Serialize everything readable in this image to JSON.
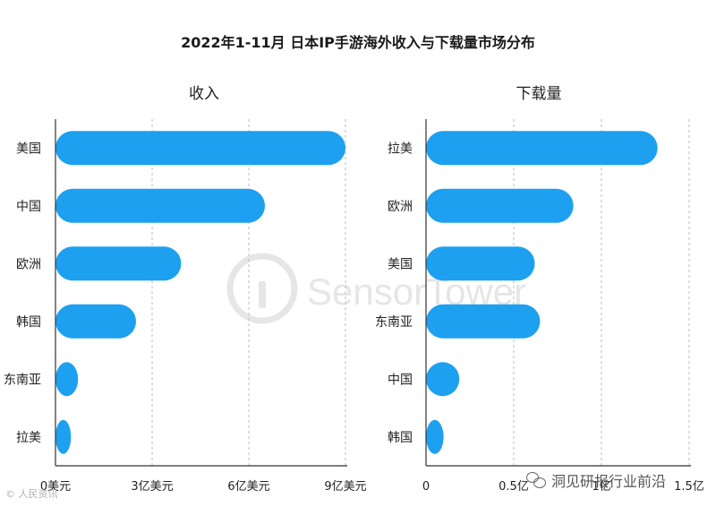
{
  "title": "2022年1-11月 日本IP手游海外收入与下载量市场分布",
  "colors": {
    "bar": "#1ea0f0",
    "grid": "#bdbdbd",
    "axis": "#333333",
    "watermark": "#e2e2e2"
  },
  "watermark": "SensorTower",
  "footer_left": "© 人民资讯",
  "footer_right": "洞见研报行业前沿",
  "chart_data": [
    {
      "type": "bar",
      "orientation": "horizontal",
      "title": "收入",
      "categories": [
        "美国",
        "中国",
        "欧洲",
        "韩国",
        "东南亚",
        "拉美"
      ],
      "values": [
        9.0,
        6.5,
        3.9,
        2.5,
        0.7,
        0.48
      ],
      "xlim": [
        0,
        9
      ],
      "ticks": [
        0,
        3,
        6,
        9
      ],
      "tick_labels": [
        "0美元",
        "3亿美元",
        "6亿美元",
        "9亿美元"
      ],
      "grid": true
    },
    {
      "type": "bar",
      "orientation": "horizontal",
      "title": "下载量",
      "categories": [
        "拉美",
        "欧洲",
        "美国",
        "东南亚",
        "中国",
        "韩国"
      ],
      "values": [
        1.32,
        0.84,
        0.62,
        0.65,
        0.19,
        0.1
      ],
      "xlim": [
        0,
        1.5
      ],
      "ticks": [
        0,
        0.5,
        1,
        1.5
      ],
      "tick_labels": [
        "0",
        "0.5亿",
        "1亿",
        "1.5亿"
      ],
      "grid": true
    }
  ]
}
